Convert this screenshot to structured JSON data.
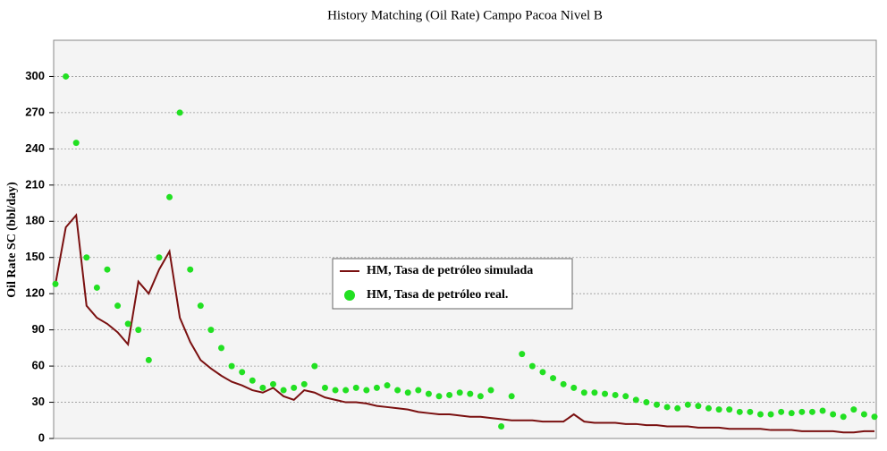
{
  "chart_data": {
    "type": "line",
    "title": "History Matching (Oil Rate) Campo Pacoa Nivel B",
    "y_label": "Oil Rate SC (bbl/day)",
    "categories": [
      null,
      null,
      null,
      null,
      null,
      null,
      null,
      null,
      null,
      null,
      null,
      null,
      null,
      null,
      null,
      null,
      null,
      null,
      null,
      null,
      null,
      null,
      null,
      null,
      null,
      null,
      null,
      null,
      null,
      null,
      null,
      null,
      null,
      null,
      null,
      null,
      null,
      null,
      null,
      null,
      null,
      null,
      null,
      null,
      null,
      null,
      null,
      null,
      null,
      null,
      null,
      null,
      null,
      null,
      null,
      null,
      null,
      null,
      null,
      null,
      null,
      null,
      null,
      null,
      null,
      null,
      null,
      null,
      null,
      null,
      null,
      null,
      null,
      null,
      null,
      null,
      null,
      null,
      null,
      null
    ],
    "ylim": [
      0,
      330
    ],
    "yticks": [
      0,
      30,
      60,
      90,
      120,
      150,
      180,
      210,
      240,
      270,
      300
    ],
    "grid": true,
    "series": [
      {
        "name": "HM, Tasa de petróleo simulada",
        "type": "line",
        "color": "#7a1010",
        "values": [
          128,
          175,
          185,
          110,
          100,
          95,
          88,
          78,
          130,
          120,
          140,
          155,
          100,
          80,
          65,
          58,
          52,
          47,
          44,
          40,
          38,
          42,
          35,
          32,
          40,
          38,
          34,
          32,
          30,
          30,
          29,
          27,
          26,
          25,
          24,
          22,
          21,
          20,
          20,
          19,
          18,
          18,
          17,
          16,
          15,
          15,
          15,
          14,
          14,
          14,
          20,
          14,
          13,
          13,
          13,
          12,
          12,
          11,
          11,
          10,
          10,
          10,
          9,
          9,
          9,
          8,
          8,
          8,
          8,
          7,
          7,
          7,
          6,
          6,
          6,
          6,
          5,
          5,
          6,
          6
        ]
      },
      {
        "name": "HM, Tasa de petróleo real.",
        "type": "scatter",
        "color": "#22e022",
        "values": [
          128,
          300,
          245,
          150,
          125,
          140,
          110,
          95,
          90,
          65,
          150,
          200,
          270,
          140,
          110,
          90,
          75,
          60,
          55,
          48,
          42,
          45,
          40,
          42,
          45,
          60,
          42,
          40,
          40,
          42,
          40,
          42,
          44,
          40,
          38,
          40,
          37,
          35,
          36,
          38,
          37,
          35,
          40,
          10,
          35,
          70,
          60,
          55,
          50,
          45,
          42,
          38,
          38,
          37,
          36,
          35,
          32,
          30,
          28,
          26,
          25,
          28,
          27,
          25,
          24,
          24,
          22,
          22,
          20,
          20,
          22,
          21,
          22,
          22,
          23,
          20,
          18,
          24,
          20,
          18
        ]
      }
    ]
  }
}
